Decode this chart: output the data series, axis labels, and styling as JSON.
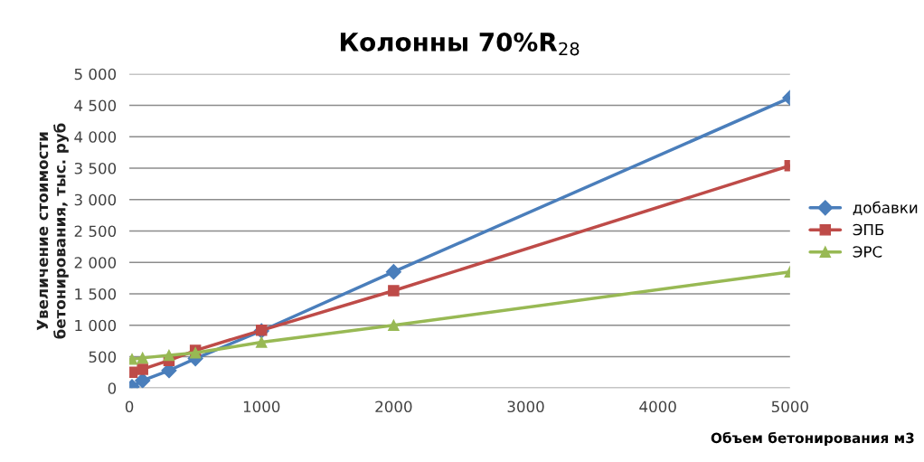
{
  "chart_data": {
    "type": "line",
    "title": "Колонны 70%R$_{28}$",
    "xlabel": "Объем бетонирования м3",
    "ylabel": "Увеличение стоимости\nбетонирования, тыс. руб",
    "x": [
      20,
      100,
      300,
      500,
      1000,
      2000,
      5000
    ],
    "series": [
      {
        "name": "добавки",
        "color": "#4a7ebb",
        "marker": "diamond",
        "values": [
          20,
          120,
          280,
          470,
          910,
          1850,
          4620
        ]
      },
      {
        "name": "ЭПБ",
        "color": "#be4b48",
        "marker": "square",
        "values": [
          250,
          300,
          440,
          600,
          920,
          1550,
          3540
        ]
      },
      {
        "name": "ЭРС",
        "color": "#98b954",
        "marker": "triangle",
        "values": [
          460,
          480,
          520,
          560,
          730,
          1000,
          1850
        ]
      }
    ],
    "xlim": [
      0,
      5000
    ],
    "xticks": [
      0,
      1000,
      2000,
      3000,
      4000,
      5000
    ],
    "ylim": [
      0,
      5000
    ],
    "yticks": [
      0,
      {
        "value": 500,
        "label": "500"
      },
      {
        "value": 1000,
        "label": "1 000"
      },
      {
        "value": 1500,
        "label": "1 500"
      },
      {
        "value": 2000,
        "label": "2 000"
      },
      {
        "value": 2500,
        "label": "2 500"
      },
      {
        "value": 3000,
        "label": "3 000"
      },
      {
        "value": 3500,
        "label": "3 500"
      },
      {
        "value": 4000,
        "label": "4 000"
      },
      {
        "value": 4500,
        "label": "4 500"
      },
      {
        "value": 5000,
        "label": "5 000"
      }
    ],
    "grid": "y",
    "legend": "right",
    "line_style": "solid"
  }
}
